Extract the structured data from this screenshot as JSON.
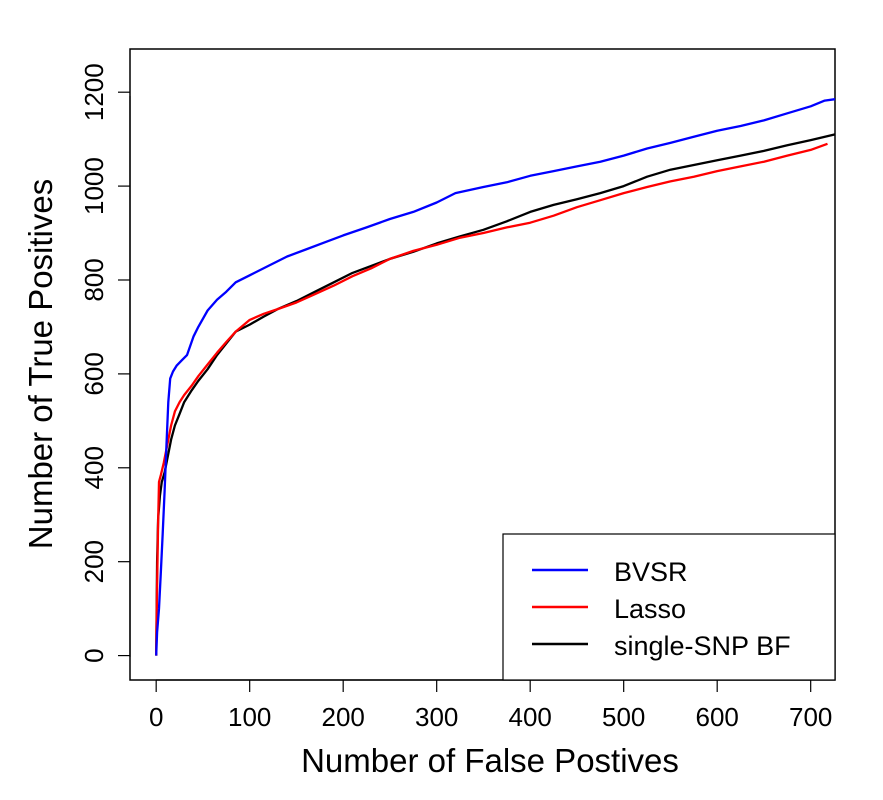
{
  "chart_data": {
    "type": "line",
    "title": "",
    "xlabel": "Number of False Postives",
    "ylabel": "Number of True Positives",
    "xlim": [
      -28,
      726
    ],
    "ylim": [
      -52,
      1292
    ],
    "xticks": [
      0,
      100,
      200,
      300,
      400,
      500,
      600,
      700
    ],
    "yticks": [
      0,
      200,
      400,
      600,
      800,
      1000,
      1200
    ],
    "grid": false,
    "legend_position": "bottom-right",
    "series": [
      {
        "name": "BVSR",
        "color": "#0000ff",
        "points": [
          [
            0,
            0
          ],
          [
            1,
            50
          ],
          [
            3,
            100
          ],
          [
            5,
            180
          ],
          [
            7,
            260
          ],
          [
            9,
            350
          ],
          [
            11,
            450
          ],
          [
            13,
            540
          ],
          [
            15,
            590
          ],
          [
            18,
            605
          ],
          [
            22,
            618
          ],
          [
            27,
            628
          ],
          [
            33,
            640
          ],
          [
            40,
            680
          ],
          [
            45,
            700
          ],
          [
            55,
            735
          ],
          [
            65,
            758
          ],
          [
            75,
            775
          ],
          [
            85,
            795
          ],
          [
            100,
            810
          ],
          [
            120,
            830
          ],
          [
            140,
            850
          ],
          [
            160,
            865
          ],
          [
            180,
            880
          ],
          [
            200,
            895
          ],
          [
            225,
            912
          ],
          [
            250,
            930
          ],
          [
            275,
            945
          ],
          [
            300,
            965
          ],
          [
            320,
            985
          ],
          [
            350,
            998
          ],
          [
            375,
            1008
          ],
          [
            400,
            1022
          ],
          [
            425,
            1032
          ],
          [
            450,
            1042
          ],
          [
            475,
            1052
          ],
          [
            500,
            1065
          ],
          [
            525,
            1080
          ],
          [
            550,
            1092
          ],
          [
            575,
            1105
          ],
          [
            600,
            1118
          ],
          [
            625,
            1128
          ],
          [
            650,
            1140
          ],
          [
            675,
            1155
          ],
          [
            700,
            1170
          ],
          [
            715,
            1182
          ],
          [
            726,
            1185
          ]
        ]
      },
      {
        "name": "Lasso",
        "color": "#ff0000",
        "points": [
          [
            0,
            0
          ],
          [
            1,
            150
          ],
          [
            2,
            280
          ],
          [
            3,
            370
          ],
          [
            5,
            385
          ],
          [
            8,
            410
          ],
          [
            12,
            450
          ],
          [
            16,
            490
          ],
          [
            20,
            520
          ],
          [
            25,
            540
          ],
          [
            30,
            555
          ],
          [
            38,
            575
          ],
          [
            45,
            595
          ],
          [
            55,
            620
          ],
          [
            65,
            645
          ],
          [
            75,
            668
          ],
          [
            85,
            690
          ],
          [
            100,
            715
          ],
          [
            115,
            728
          ],
          [
            130,
            738
          ],
          [
            150,
            752
          ],
          [
            170,
            770
          ],
          [
            190,
            788
          ],
          [
            210,
            808
          ],
          [
            230,
            825
          ],
          [
            250,
            845
          ],
          [
            275,
            862
          ],
          [
            300,
            875
          ],
          [
            325,
            890
          ],
          [
            350,
            900
          ],
          [
            375,
            912
          ],
          [
            400,
            922
          ],
          [
            425,
            937
          ],
          [
            450,
            955
          ],
          [
            475,
            970
          ],
          [
            500,
            985
          ],
          [
            525,
            998
          ],
          [
            550,
            1010
          ],
          [
            575,
            1020
          ],
          [
            600,
            1032
          ],
          [
            625,
            1042
          ],
          [
            650,
            1052
          ],
          [
            675,
            1065
          ],
          [
            700,
            1077
          ],
          [
            718,
            1090
          ]
        ]
      },
      {
        "name": "single-SNP BF",
        "color": "#000000",
        "points": [
          [
            0,
            0
          ],
          [
            1,
            200
          ],
          [
            2,
            290
          ],
          [
            4,
            340
          ],
          [
            6,
            370
          ],
          [
            9,
            390
          ],
          [
            12,
            420
          ],
          [
            16,
            460
          ],
          [
            20,
            490
          ],
          [
            25,
            515
          ],
          [
            30,
            540
          ],
          [
            38,
            565
          ],
          [
            45,
            585
          ],
          [
            55,
            610
          ],
          [
            65,
            640
          ],
          [
            75,
            665
          ],
          [
            85,
            690
          ],
          [
            100,
            705
          ],
          [
            115,
            722
          ],
          [
            130,
            738
          ],
          [
            150,
            755
          ],
          [
            170,
            775
          ],
          [
            190,
            795
          ],
          [
            210,
            815
          ],
          [
            230,
            830
          ],
          [
            250,
            845
          ],
          [
            275,
            860
          ],
          [
            300,
            878
          ],
          [
            325,
            893
          ],
          [
            350,
            907
          ],
          [
            375,
            925
          ],
          [
            400,
            945
          ],
          [
            425,
            960
          ],
          [
            450,
            972
          ],
          [
            475,
            985
          ],
          [
            500,
            1000
          ],
          [
            525,
            1020
          ],
          [
            550,
            1035
          ],
          [
            575,
            1045
          ],
          [
            600,
            1055
          ],
          [
            625,
            1065
          ],
          [
            650,
            1075
          ],
          [
            675,
            1087
          ],
          [
            700,
            1098
          ],
          [
            726,
            1110
          ]
        ]
      }
    ]
  }
}
